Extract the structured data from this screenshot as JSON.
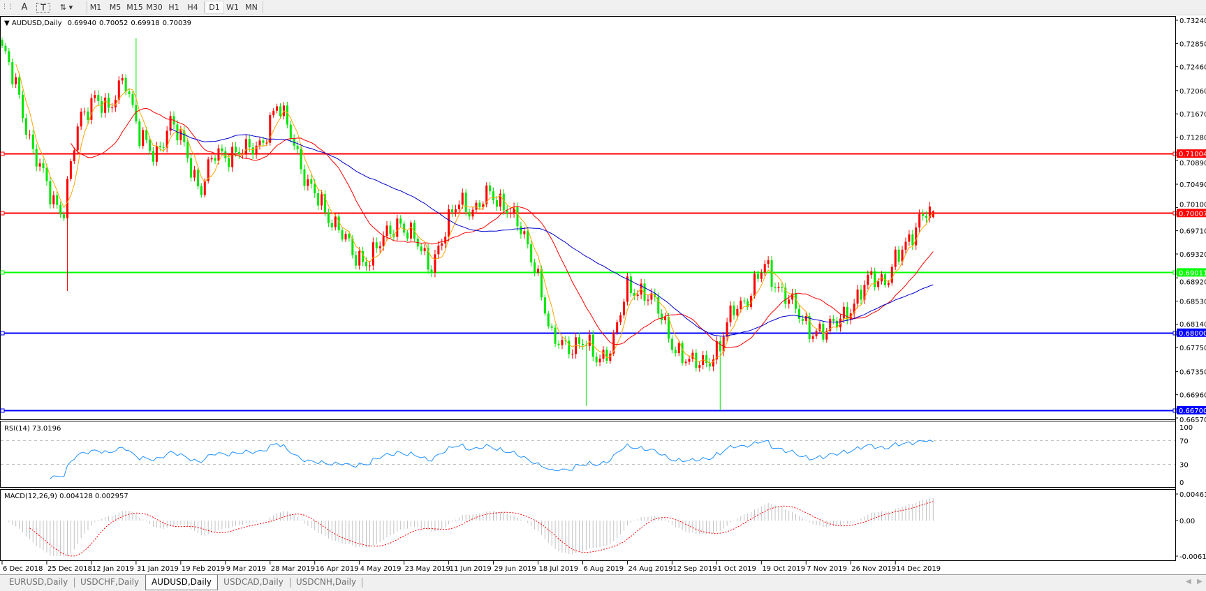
{
  "toolbar": {
    "icons": [
      "grid-icon",
      "text-icon",
      "text-label-icon",
      "arrows-icon"
    ],
    "text_tool": "A",
    "timeframes": [
      "M1",
      "M5",
      "M15",
      "M30",
      "H1",
      "H4",
      "D1",
      "W1",
      "MN"
    ],
    "active_timeframe": "D1"
  },
  "chart_header": {
    "symbol": "AUDUSD,Daily",
    "open": "0.69940",
    "high": "0.70052",
    "low": "0.69918",
    "close": "0.70039"
  },
  "chart_data": {
    "type": "candlestick",
    "symbol": "AUDUSD",
    "timeframe": "Daily",
    "ylim": [
      0.6657,
      0.7324
    ],
    "price_ticks": [
      "0.73240",
      "0.72850",
      "0.72460",
      "0.72060",
      "0.71670",
      "0.71280",
      "0.70890",
      "0.70490",
      "0.70100",
      "0.69710",
      "0.69320",
      "0.68920",
      "0.68530",
      "0.68140",
      "0.67750",
      "0.67350",
      "0.66960",
      "0.66570"
    ],
    "date_ticks": [
      "6 Dec 2018",
      "25 Dec 2018",
      "12 Jan 2019",
      "31 Jan 2019",
      "19 Feb 2019",
      "9 Mar 2019",
      "28 Mar 2019",
      "16 Apr 2019",
      "4 May 2019",
      "23 May 2019",
      "11 Jun 2019",
      "29 Jun 2019",
      "18 Jul 2019",
      "6 Aug 2019",
      "24 Aug 2019",
      "12 Sep 2019",
      "1 Oct 2019",
      "19 Oct 2019",
      "7 Nov 2019",
      "26 Nov 2019",
      "14 Dec 2019"
    ],
    "approx_close_path": [
      0.7268,
      0.7215,
      0.71,
      0.7044,
      0.7,
      0.7149,
      0.7202,
      0.7163,
      0.7241,
      0.7123,
      0.71,
      0.715,
      0.711,
      0.7038,
      0.71,
      0.7103,
      0.71,
      0.7123,
      0.7176,
      0.7136,
      0.7044,
      0.7012,
      0.6979,
      0.6926,
      0.6926,
      0.6953,
      0.6992,
      0.6953,
      0.6913,
      0.6966,
      0.7025,
      0.7005,
      0.7031,
      0.7018,
      0.6966,
      0.6913,
      0.6782,
      0.6782,
      0.6782,
      0.6756,
      0.6782,
      0.6874,
      0.6874,
      0.6834,
      0.6782,
      0.6743,
      0.6756,
      0.6769,
      0.6848,
      0.6861,
      0.6913,
      0.6874,
      0.6834,
      0.6808,
      0.6795,
      0.6834,
      0.6848,
      0.69,
      0.6887,
      0.6939,
      0.699,
      0.7004
    ],
    "notable_extremes": [
      {
        "date": "3 Jan 2019",
        "low": 0.687
      },
      {
        "date": "31 Jan 2019",
        "high": 0.7294
      },
      {
        "date": "7 Aug 2019",
        "low": 0.6677
      },
      {
        "date": "2 Oct 2019",
        "low": 0.6671
      }
    ],
    "candle_colors": {
      "bull": "#ff0000",
      "bear": "#00e600"
    },
    "moving_averages": [
      {
        "period": 5,
        "color": "#ffa500"
      },
      {
        "period": 21,
        "color": "#ff0000"
      },
      {
        "period": 50,
        "color": "#0000cd"
      }
    ],
    "horizontal_lines": [
      {
        "price": "0.71004",
        "color": "#ff0000"
      },
      {
        "price": "0.70007",
        "color": "#ff0000"
      },
      {
        "price": "0.69011",
        "color": "#00ff00"
      },
      {
        "price": "0.68000",
        "color": "#0000ff"
      },
      {
        "price": "0.66700",
        "color": "#0000ff"
      }
    ]
  },
  "rsi": {
    "label": "RSI(14) 73.0196",
    "ticks": [
      "100",
      "70",
      "30",
      "0"
    ],
    "levels": [
      70,
      30
    ],
    "color": "#1e90ff"
  },
  "macd": {
    "label": "MACD(12,26,9) 0.004128 0.002957",
    "ticks": [
      "0.004616",
      "0.00",
      "-0.006126"
    ],
    "max": 0.004616,
    "min": -0.006126,
    "histogram_color": "#c0c0c0",
    "signal_color": "#ff0000"
  },
  "tabs": [
    {
      "label": "EURUSD,Daily",
      "active": false
    },
    {
      "label": "USDCHF,Daily",
      "active": false
    },
    {
      "label": "AUDUSD,Daily",
      "active": true
    },
    {
      "label": "USDCAD,Daily",
      "active": false
    },
    {
      "label": "USDCNH,Daily",
      "active": false
    }
  ]
}
